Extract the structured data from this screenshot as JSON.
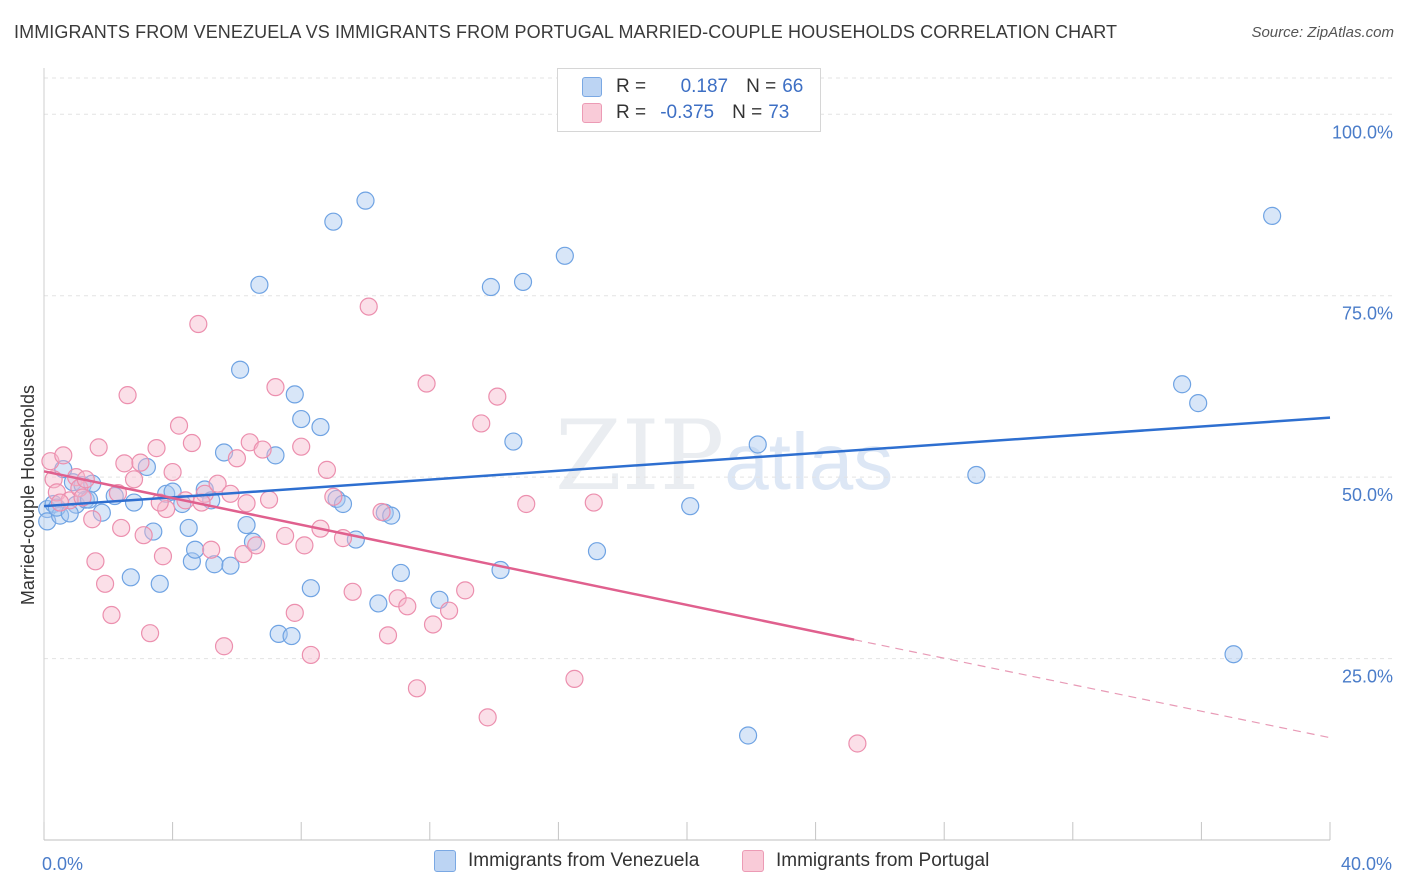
{
  "title": "IMMIGRANTS FROM VENEZUELA VS IMMIGRANTS FROM PORTUGAL MARRIED-COUPLE HOUSEHOLDS CORRELATION CHART",
  "source": "Source: ZipAtlas.com",
  "watermark": {
    "zip": "ZIP",
    "atlas": "atlas"
  },
  "legend": {
    "rows": [
      {
        "r_label": "R = ",
        "r_value": "0.187",
        "n_label": "N = ",
        "n_value": "66",
        "color": "#a9c8f0"
      },
      {
        "r_label": "R = ",
        "r_value": "-0.375",
        "n_label": "N = ",
        "n_value": "73",
        "color": "#f7b9cb"
      }
    ]
  },
  "bottom_legend": {
    "items": [
      {
        "label": "Immigrants from Venezuela",
        "color": "#a9c8f0"
      },
      {
        "label": "Immigrants from Portugal",
        "color": "#f7b9cb"
      }
    ]
  },
  "chart_data": {
    "type": "scatter",
    "title": "IMMIGRANTS FROM VENEZUELA VS IMMIGRANTS FROM PORTUGAL MARRIED-COUPLE HOUSEHOLDS CORRELATION CHART",
    "xlabel": "",
    "ylabel": "Married-couple Households",
    "xlim": [
      0,
      40
    ],
    "ylim": [
      0,
      105
    ],
    "x_tick_labels": [
      "0.0%",
      "40.0%"
    ],
    "y_tick_labels": [
      "100.0%",
      "75.0%",
      "50.0%",
      "25.0%"
    ],
    "y_tick_values": [
      100,
      75,
      50,
      25
    ],
    "grid": true,
    "series": [
      {
        "name": "Immigrants from Venezuela",
        "color": "#6fa3e3",
        "fill": "rgba(169,200,240,0.45)",
        "trend": {
          "x": [
            0,
            40
          ],
          "y": [
            46.0,
            58.2
          ],
          "dashed_from": null
        },
        "points": [
          [
            0.1,
            45.6
          ],
          [
            0.1,
            43.9
          ],
          [
            0.3,
            46.3
          ],
          [
            0.5,
            44.7
          ],
          [
            0.6,
            51.1
          ],
          [
            0.9,
            49.3
          ],
          [
            1.0,
            46.2
          ],
          [
            1.2,
            48.9
          ],
          [
            1.3,
            46.9
          ],
          [
            1.5,
            49.1
          ],
          [
            1.8,
            45.1
          ],
          [
            2.2,
            47.4
          ],
          [
            2.7,
            36.2
          ],
          [
            3.2,
            51.4
          ],
          [
            3.4,
            42.5
          ],
          [
            3.6,
            35.3
          ],
          [
            3.8,
            47.7
          ],
          [
            4.0,
            48.0
          ],
          [
            4.5,
            43.0
          ],
          [
            4.6,
            38.4
          ],
          [
            4.7,
            40.0
          ],
          [
            5.0,
            48.3
          ],
          [
            5.3,
            38.0
          ],
          [
            5.6,
            53.4
          ],
          [
            5.8,
            37.8
          ],
          [
            6.1,
            64.8
          ],
          [
            6.3,
            43.4
          ],
          [
            6.5,
            41.1
          ],
          [
            6.7,
            76.5
          ],
          [
            7.2,
            53.0
          ],
          [
            7.3,
            28.4
          ],
          [
            7.7,
            28.1
          ],
          [
            7.8,
            61.4
          ],
          [
            8.0,
            58.0
          ],
          [
            8.3,
            34.7
          ],
          [
            8.6,
            56.9
          ],
          [
            9.0,
            85.2
          ],
          [
            9.1,
            47.0
          ],
          [
            9.3,
            46.3
          ],
          [
            9.7,
            41.4
          ],
          [
            10.0,
            88.1
          ],
          [
            10.4,
            32.6
          ],
          [
            10.6,
            45.1
          ],
          [
            10.8,
            44.7
          ],
          [
            11.1,
            36.8
          ],
          [
            12.3,
            33.1
          ],
          [
            13.9,
            76.2
          ],
          [
            14.2,
            37.2
          ],
          [
            14.6,
            54.9
          ],
          [
            14.9,
            76.9
          ],
          [
            16.2,
            80.5
          ],
          [
            17.2,
            39.8
          ],
          [
            20.1,
            46.0
          ],
          [
            21.9,
            14.4
          ],
          [
            22.2,
            54.5
          ],
          [
            29.0,
            50.3
          ],
          [
            35.4,
            62.8
          ],
          [
            35.9,
            60.2
          ],
          [
            37.0,
            25.6
          ],
          [
            38.2,
            86.0
          ],
          [
            1.4,
            46.9
          ],
          [
            2.8,
            46.5
          ],
          [
            4.3,
            46.3
          ],
          [
            5.2,
            46.8
          ],
          [
            0.4,
            45.8
          ],
          [
            0.8,
            45.0
          ]
        ]
      },
      {
        "name": "Immigrants from Portugal",
        "color": "#ec8fae",
        "fill": "rgba(247,185,203,0.45)",
        "trend": {
          "x": [
            0,
            25.2
          ],
          "y": [
            50.8,
            27.6
          ],
          "dashed_to": [
            40,
            14.1
          ]
        },
        "points": [
          [
            0.2,
            52.2
          ],
          [
            0.3,
            49.7
          ],
          [
            0.4,
            47.9
          ],
          [
            0.6,
            53.0
          ],
          [
            0.8,
            46.8
          ],
          [
            1.0,
            50.0
          ],
          [
            1.1,
            48.5
          ],
          [
            1.3,
            49.7
          ],
          [
            1.5,
            44.2
          ],
          [
            1.6,
            38.4
          ],
          [
            1.7,
            54.1
          ],
          [
            1.9,
            35.3
          ],
          [
            2.1,
            31.0
          ],
          [
            2.3,
            47.8
          ],
          [
            2.5,
            51.9
          ],
          [
            2.6,
            61.3
          ],
          [
            2.8,
            49.7
          ],
          [
            3.0,
            52.0
          ],
          [
            3.1,
            42.0
          ],
          [
            3.3,
            28.5
          ],
          [
            3.5,
            54.0
          ],
          [
            3.7,
            39.1
          ],
          [
            3.8,
            45.6
          ],
          [
            4.0,
            50.7
          ],
          [
            4.2,
            57.1
          ],
          [
            4.4,
            46.8
          ],
          [
            4.6,
            54.7
          ],
          [
            4.8,
            71.1
          ],
          [
            5.0,
            47.7
          ],
          [
            5.2,
            40.0
          ],
          [
            5.4,
            49.1
          ],
          [
            5.6,
            26.7
          ],
          [
            5.8,
            47.7
          ],
          [
            6.0,
            52.6
          ],
          [
            6.2,
            39.4
          ],
          [
            6.4,
            54.8
          ],
          [
            6.6,
            40.6
          ],
          [
            6.8,
            53.8
          ],
          [
            7.0,
            46.9
          ],
          [
            7.2,
            62.4
          ],
          [
            7.5,
            41.9
          ],
          [
            7.8,
            31.3
          ],
          [
            8.0,
            54.2
          ],
          [
            8.1,
            40.6
          ],
          [
            8.3,
            25.5
          ],
          [
            8.6,
            42.9
          ],
          [
            8.8,
            51.0
          ],
          [
            9.0,
            47.3
          ],
          [
            9.3,
            41.6
          ],
          [
            9.6,
            34.2
          ],
          [
            10.1,
            73.5
          ],
          [
            10.5,
            45.2
          ],
          [
            10.7,
            28.2
          ],
          [
            11.0,
            33.3
          ],
          [
            11.3,
            32.2
          ],
          [
            11.6,
            20.9
          ],
          [
            11.9,
            62.9
          ],
          [
            12.1,
            29.7
          ],
          [
            12.6,
            31.6
          ],
          [
            13.1,
            34.4
          ],
          [
            13.6,
            57.4
          ],
          [
            13.8,
            16.9
          ],
          [
            14.1,
            61.1
          ],
          [
            15.0,
            46.3
          ],
          [
            16.5,
            22.2
          ],
          [
            17.1,
            46.5
          ],
          [
            25.3,
            13.3
          ],
          [
            0.5,
            46.5
          ],
          [
            1.2,
            47.2
          ],
          [
            2.4,
            43.0
          ],
          [
            3.6,
            46.5
          ],
          [
            4.9,
            46.5
          ],
          [
            6.3,
            46.4
          ]
        ]
      }
    ]
  }
}
